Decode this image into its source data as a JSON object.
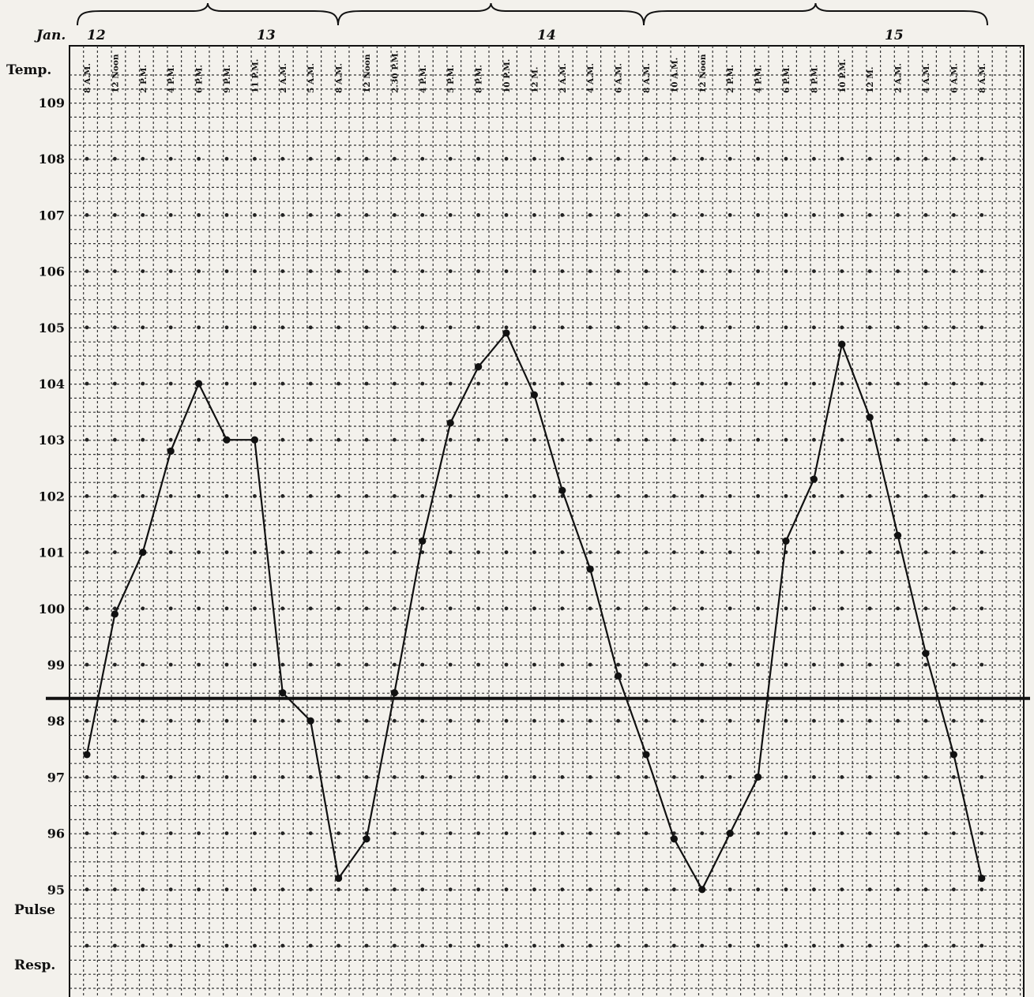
{
  "chart_data": {
    "type": "line",
    "month_label": "Jan.",
    "days": [
      "12",
      "13",
      "14",
      "15"
    ],
    "row_labels": {
      "temp": "Temp.",
      "pulse": "Pulse",
      "resp": "Resp."
    },
    "x": [
      "8 A.M.",
      "12 Noon",
      "2 P.M.",
      "4 P.M.",
      "6 P.M.",
      "9 P.M.",
      "11 P.M.",
      "2 A.M.",
      "5 A.M.",
      "8 A.M.",
      "12 Noon",
      "2.30 P.M.",
      "4 P.M.",
      "5 P.M.",
      "8 P.M.",
      "10 P.M.",
      "12 M.",
      "2 A.M.",
      "4 A.M.",
      "6 A.M.",
      "8 A.M.",
      "10 A.M.",
      "12 Noon",
      "2 P.M.",
      "4 P.M.",
      "6 P.M.",
      "8 P.M.",
      "10 P.M.",
      "12 M.",
      "2 A.M.",
      "4 A.M.",
      "6 A.M.",
      "8 A.M."
    ],
    "yticks": [
      "109",
      "108",
      "107",
      "106",
      "105",
      "104",
      "103",
      "102",
      "101",
      "100",
      "99",
      "98",
      "97",
      "96",
      "95"
    ],
    "ylim": [
      95,
      109
    ],
    "normal_line": 98.4,
    "series": [
      {
        "values": [
          97.4,
          99.9,
          101.0,
          102.8,
          104.0,
          103.0,
          103.0,
          98.5,
          98.0,
          95.2,
          95.9,
          98.5,
          101.2,
          103.3,
          104.3,
          104.9,
          103.8,
          102.1,
          100.7,
          98.8,
          97.4,
          95.9,
          95.0,
          96.0,
          97.0,
          101.2,
          102.3,
          104.7,
          103.4,
          101.3,
          99.2,
          97.4,
          95.2
        ]
      }
    ]
  }
}
